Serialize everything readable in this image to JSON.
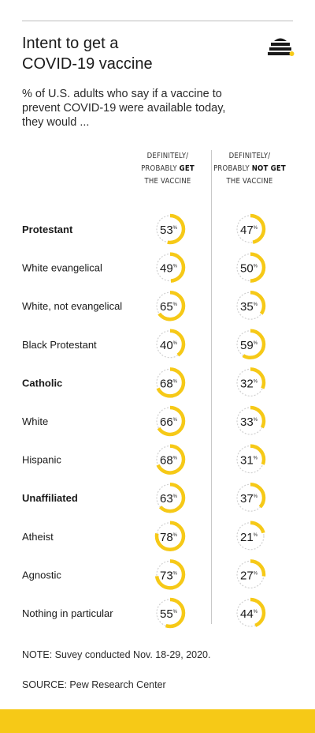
{
  "header": {
    "title_line1": "Intent to get a",
    "title_line2": "COVID-19 vaccine",
    "subtitle_line1": "% of U.S. adults who say if a vaccine to",
    "subtitle_line2": "prevent COVID-19 were available today,",
    "subtitle_line3": "they would ..."
  },
  "columns": {
    "get": {
      "line1": "DEFINITELY/",
      "line2_pre": "PROBABLY ",
      "line2_bold": "GET",
      "line3": "THE VACCINE"
    },
    "not_get": {
      "line1": "DEFINITELY/",
      "line2_pre": "PROBABLY ",
      "line2_bold": "NOT GET",
      "line3": "THE VACCINE"
    }
  },
  "colors": {
    "accent": "#f6c917",
    "track": "#d0d0d0",
    "text": "#1a1a1a"
  },
  "chart_data": {
    "type": "table",
    "unit": "%",
    "series": [
      {
        "name": "DEFINITELY/ PROBABLY GET THE VACCINE",
        "values": [
          53,
          49,
          65,
          40,
          68,
          66,
          68,
          63,
          78,
          73,
          55
        ]
      },
      {
        "name": "DEFINITELY/ PROBABLY NOT GET THE VACCINE",
        "values": [
          47,
          50,
          35,
          59,
          32,
          33,
          31,
          37,
          21,
          27,
          44
        ]
      }
    ],
    "categories": [
      "Protestant",
      "White evangelical",
      "White, not evangelical",
      "Black Protestant",
      "Catholic",
      "White",
      "Hispanic",
      "Unaffiliated",
      "Atheist",
      "Agnostic",
      "Nothing in particular"
    ],
    "bold_categories": [
      "Protestant",
      "Catholic",
      "Unaffiliated"
    ]
  },
  "footer": {
    "note": "NOTE: Suvey conducted Nov. 18-29, 2020.",
    "source": "SOURCE: Pew Research Center"
  }
}
